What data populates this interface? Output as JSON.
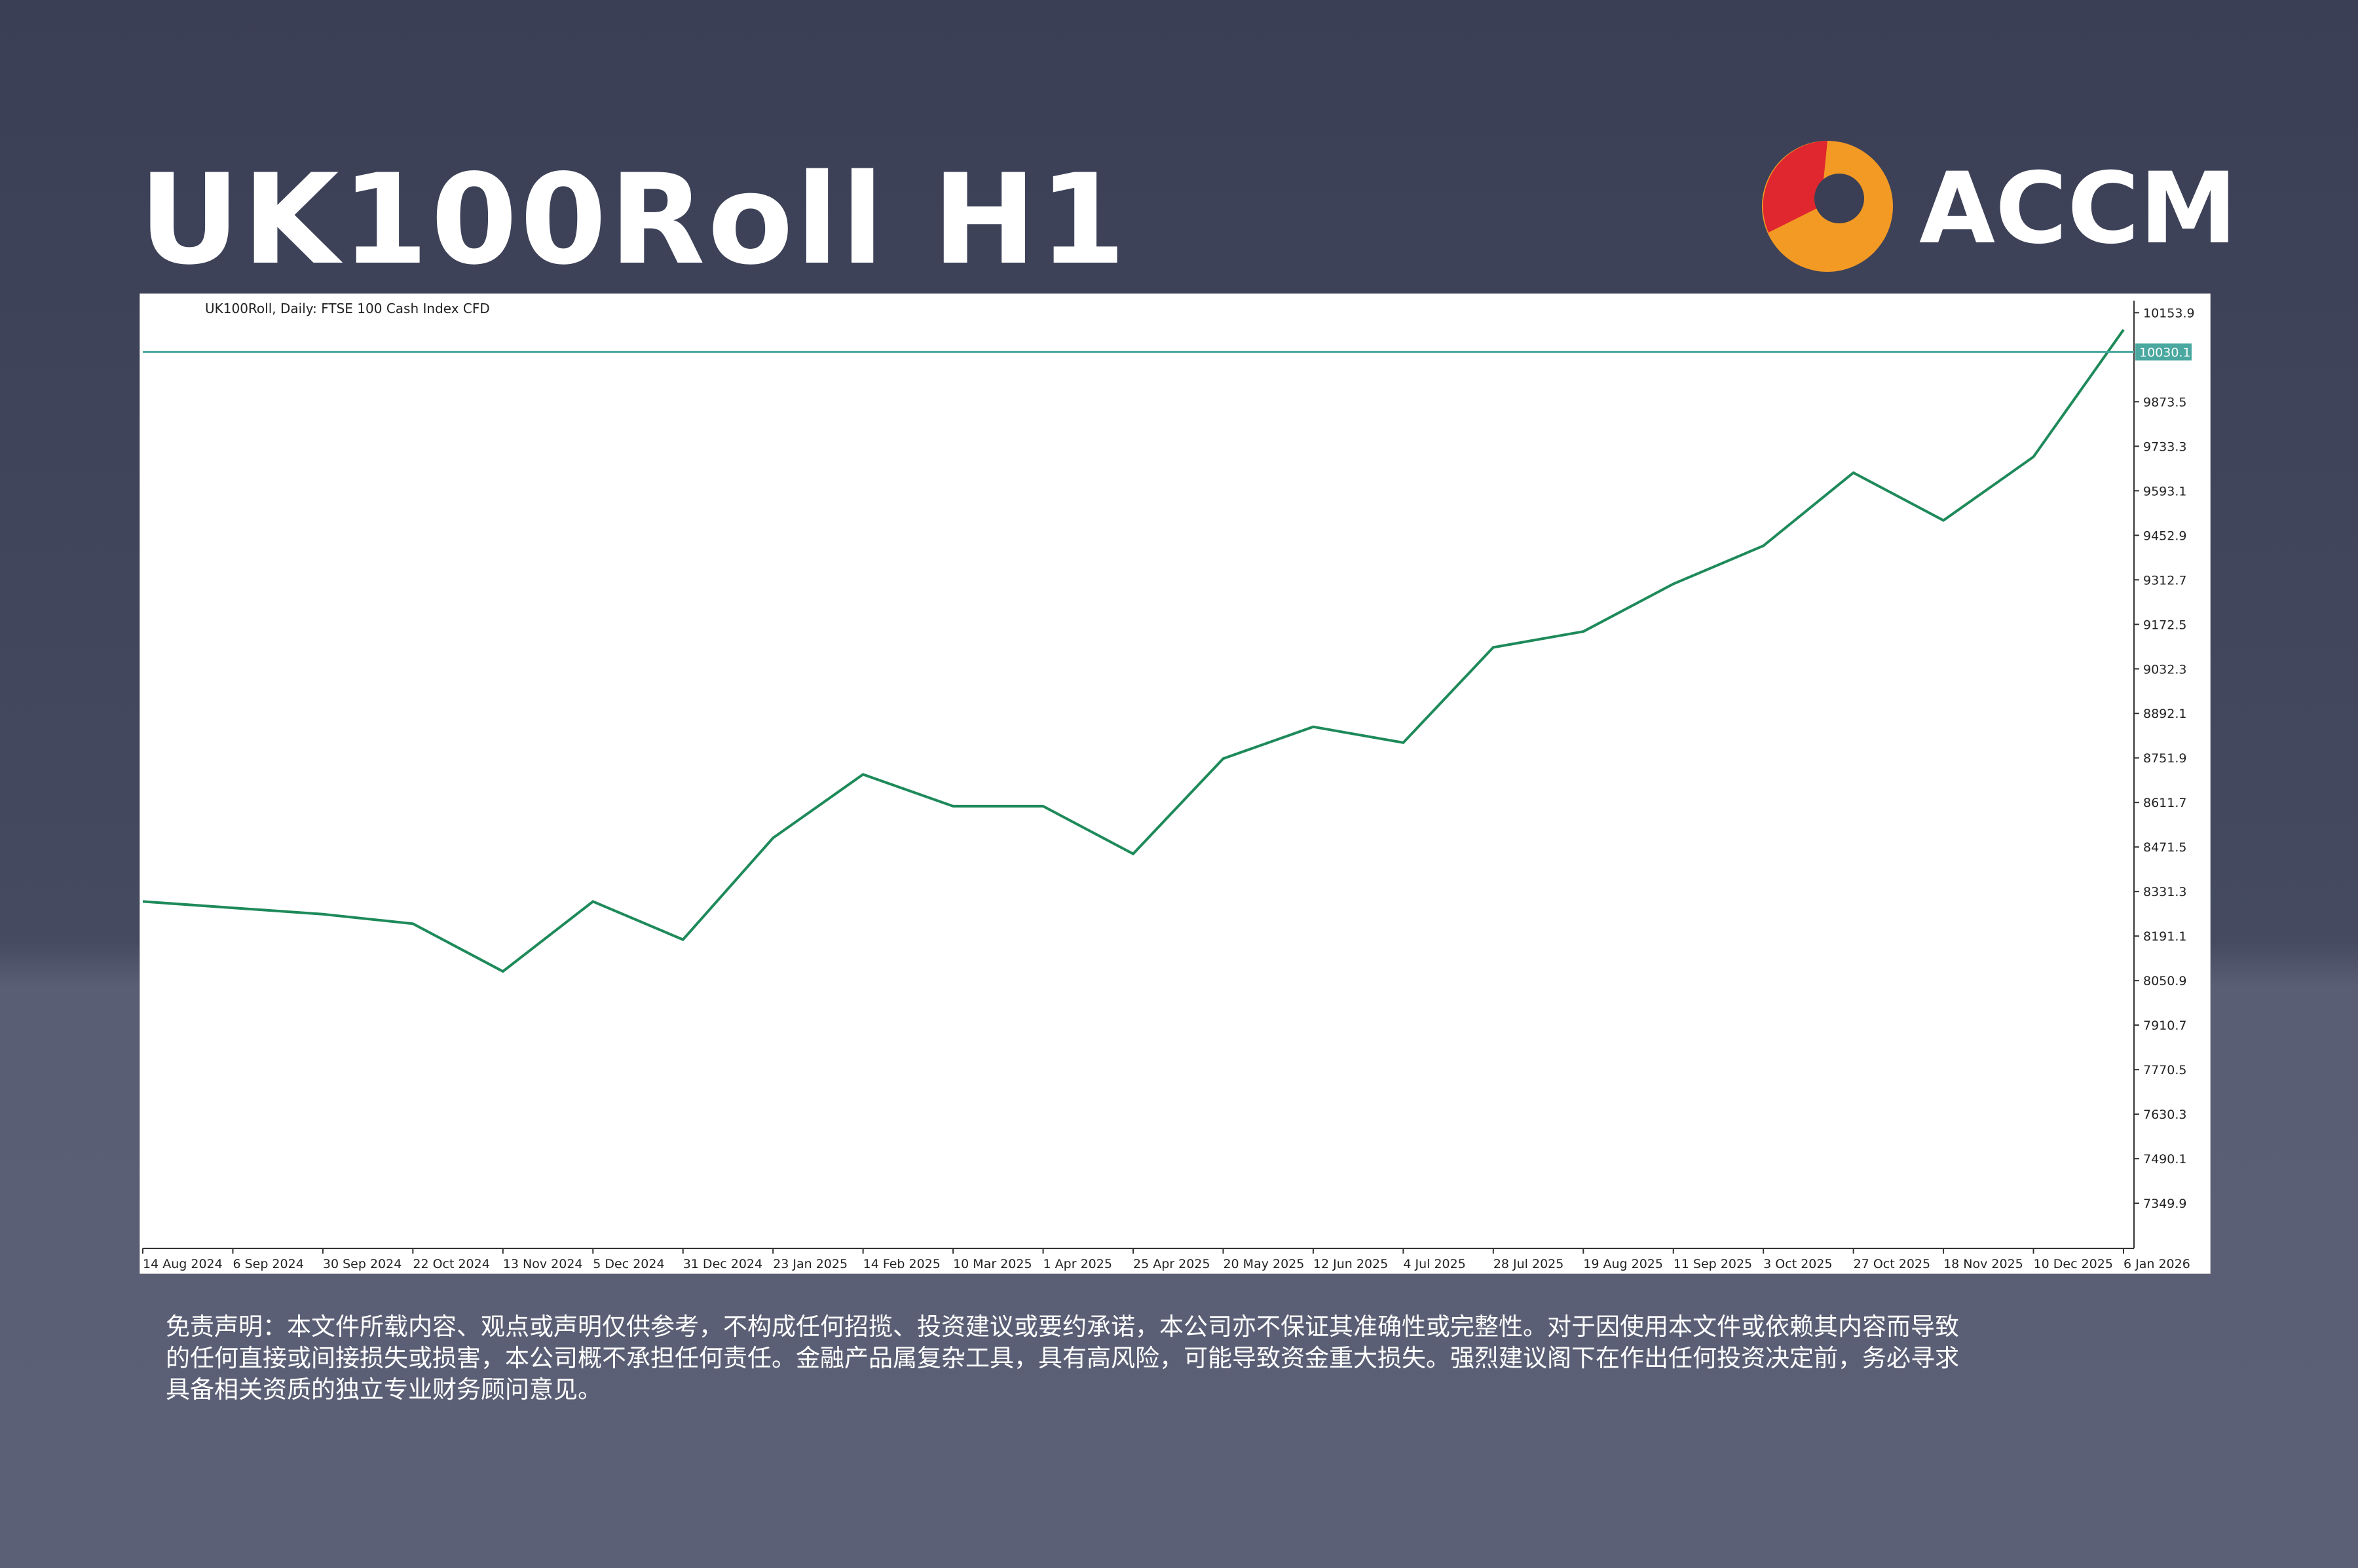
{
  "header": {
    "title": "UK100Roll H1",
    "brand": "ACCM"
  },
  "chart_data": {
    "type": "line",
    "title": "UK100Roll, Daily: FTSE 100 Cash Index CFD",
    "categories": [
      "14 Aug 2024",
      "6 Sep 2024",
      "30 Sep 2024",
      "22 Oct 2024",
      "13 Nov 2024",
      "5 Dec 2024",
      "31 Dec 2024",
      "23 Jan 2025",
      "14 Feb 2025",
      "10 Mar 2025",
      "1 Apr 2025",
      "25 Apr 2025",
      "20 May 2025",
      "12 Jun 2025",
      "4 Jul 2025",
      "28 Jul 2025",
      "19 Aug 2025",
      "11 Sep 2025",
      "3 Oct 2025",
      "27 Oct 2025",
      "18 Nov 2025",
      "10 Dec 2025",
      "6 Jan 2026"
    ],
    "values": [
      8300,
      8280,
      8260,
      8230,
      8080,
      8300,
      8180,
      8500,
      8700,
      8600,
      8600,
      8450,
      8750,
      8850,
      8800,
      9100,
      9150,
      9300,
      9420,
      9650,
      9500,
      9700,
      10100
    ],
    "color": "#1e8a5a",
    "ylim": [
      7207.8,
      10191.8
    ],
    "yticks": [
      10153.9,
      9873.5,
      9733.3,
      9593.1,
      9452.9,
      9312.7,
      9172.5,
      9032.3,
      8892.1,
      8751.9,
      8611.7,
      8471.5,
      8331.3,
      8191.1,
      8050.9,
      7910.7,
      7770.5,
      7630.3,
      7490.1,
      7349.9
    ],
    "price_line": 10030.1,
    "price_line_color": "#4aa8a0"
  },
  "disclaimer": [
    "免责声明：本文件所载内容、观点或声明仅供参考，不构成任何招揽、投资建议或要约承诺，本公司亦不保证其准确性或完整性。对于因使用本文件或依赖其内容而导致",
    "的任何直接或间接损失或损害，本公司概不承担任何责任。金融产品属复杂工具，具有高风险，可能导致资金重大损失。强烈建议阁下在作出任何投资决定前，务必寻求",
    "具备相关资质的独立专业财务顾问意见。"
  ]
}
